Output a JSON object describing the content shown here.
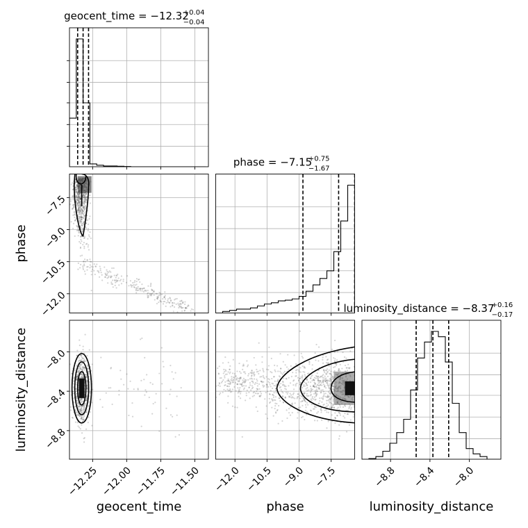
{
  "chart_data": {
    "type": "corner",
    "parameters": [
      "geocent_time",
      "phase",
      "luminosity_distance"
    ],
    "axis_labels": {
      "geocent_time": "geocent_time",
      "phase": "phase",
      "luminosity_distance": "luminosity_distance"
    },
    "ranges": {
      "geocent_time": [
        -12.42,
        -11.4
      ],
      "phase": [
        -12.9,
        -6.4
      ],
      "luminosity_distance": [
        -9.09,
        -7.68
      ]
    },
    "ticks": {
      "geocent_time": [
        -12.25,
        -12.0,
        -11.75,
        -11.5
      ],
      "phase": [
        -12.0,
        -10.5,
        -9.0,
        -7.5
      ],
      "luminosity_distance": [
        -8.8,
        -8.4,
        -8.0
      ]
    },
    "tick_labels": {
      "geocent_time": [
        "−12.25",
        "−12.00",
        "−11.75",
        "−11.50"
      ],
      "phase": [
        "−12.0",
        "−10.5",
        "−9.0",
        "−7.5"
      ],
      "luminosity_distance": [
        "−8.8",
        "−8.4",
        "−8.0"
      ]
    },
    "titles": [
      {
        "name": "geocent_time",
        "label": "geocent_time = −12.32",
        "plus": "+0.04",
        "minus": "−0.04"
      },
      {
        "name": "phase",
        "label": "phase = −7.15",
        "plus": "+0.75",
        "minus": "−1.67"
      },
      {
        "name": "luminosity_distance",
        "label": "luminosity_distance = −8.37",
        "plus": "+0.16",
        "minus": "−0.17"
      }
    ],
    "quantiles": {
      "geocent_time": [
        -12.36,
        -12.32,
        -12.28
      ],
      "phase": [
        -8.82,
        -7.15,
        -6.4
      ],
      "luminosity_distance": [
        -8.54,
        -8.37,
        -8.21
      ]
    },
    "histograms": {
      "geocent_time": {
        "bin_edges": [
          -12.42,
          -12.37,
          -12.32,
          -12.27,
          -12.22,
          -12.17,
          -12.12,
          -12.07,
          -12.02,
          -11.97,
          -11.92,
          -11.87,
          -11.82,
          -11.77,
          -11.72,
          -11.67,
          -11.62,
          -11.57,
          -11.52,
          -11.47,
          -11.42
        ],
        "counts": [
          0.38,
          1.0,
          0.5,
          0.022,
          0.012,
          0.006,
          0.006,
          0.004,
          0.002,
          0.0,
          0.0,
          0.0,
          0.0,
          0.0,
          0.0,
          0.0,
          0.0,
          0.0,
          0.0,
          0.0
        ]
      },
      "phase": {
        "bin_edges": [
          -12.9,
          -12.575,
          -12.25,
          -11.925,
          -11.6,
          -11.275,
          -10.95,
          -10.625,
          -10.3,
          -9.975,
          -9.65,
          -9.325,
          -9.0,
          -8.675,
          -8.35,
          -8.025,
          -7.7,
          -7.375,
          -7.05,
          -6.725,
          -6.4
        ],
        "counts": [
          0.0,
          0.012,
          0.02,
          0.03,
          0.03,
          0.04,
          0.055,
          0.07,
          0.08,
          0.095,
          0.1,
          0.11,
          0.13,
          0.17,
          0.22,
          0.27,
          0.33,
          0.48,
          0.72,
          1.0
        ]
      },
      "luminosity_distance": {
        "bin_edges": [
          -9.09,
          -9.0195,
          -8.949,
          -8.8785,
          -8.808,
          -8.7375,
          -8.667,
          -8.5965,
          -8.526,
          -8.4555,
          -8.385,
          -8.3145,
          -8.244,
          -8.1735,
          -8.103,
          -8.0325,
          -7.962,
          -7.8915,
          -7.821,
          -7.7505,
          -7.68
        ],
        "counts": [
          0.0,
          0.005,
          0.02,
          0.06,
          0.12,
          0.2,
          0.3,
          0.52,
          0.76,
          0.88,
          0.96,
          0.92,
          0.73,
          0.42,
          0.2,
          0.08,
          0.04,
          0.02,
          0.0,
          0.0
        ]
      }
    },
    "scatter_color": "#555555",
    "line_color": "#000000",
    "grid": true
  }
}
